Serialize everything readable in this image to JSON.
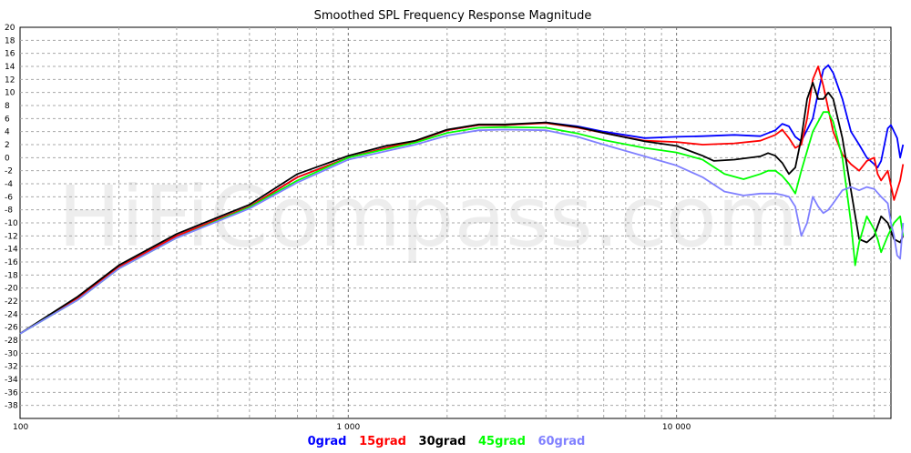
{
  "chart_data": {
    "type": "line",
    "title": "Smoothed SPL Frequency Response Magnitude",
    "watermark": "HiFiCompass.com",
    "x_scale": "log",
    "xlim": [
      100,
      45000
    ],
    "ylim": [
      -40,
      20
    ],
    "grid": true,
    "legend_position": "bottom-center",
    "y_ticks": [
      "20",
      "18",
      "16",
      "14",
      "12",
      "10",
      "8",
      "6",
      "4",
      "2",
      "0",
      "-2",
      "-4",
      "-6",
      "-8",
      "-10",
      "-12",
      "-14",
      "-16",
      "-18",
      "-20",
      "-22",
      "-24",
      "-26",
      "-28",
      "-30",
      "-32",
      "-34",
      "-36",
      "-38"
    ],
    "x_tick_labels": [
      {
        "value": 100,
        "label": "100"
      },
      {
        "value": 1000,
        "label": "1 000"
      },
      {
        "value": 10000,
        "label": "10 000"
      }
    ],
    "series": [
      {
        "name": "0grad",
        "color": "#0000ff",
        "points": [
          [
            100,
            -27
          ],
          [
            150,
            -21.5
          ],
          [
            200,
            -16.8
          ],
          [
            300,
            -12
          ],
          [
            500,
            -7.5
          ],
          [
            700,
            -3
          ],
          [
            1000,
            0
          ],
          [
            1300,
            1.5
          ],
          [
            1600,
            2.5
          ],
          [
            2000,
            4.2
          ],
          [
            2500,
            5
          ],
          [
            3000,
            5
          ],
          [
            4000,
            5.4
          ],
          [
            5000,
            4.8
          ],
          [
            6000,
            4
          ],
          [
            8000,
            3
          ],
          [
            10000,
            3.2
          ],
          [
            12000,
            3.3
          ],
          [
            15000,
            3.5
          ],
          [
            18000,
            3.3
          ],
          [
            20000,
            4.2
          ],
          [
            21000,
            5.2
          ],
          [
            22000,
            4.8
          ],
          [
            23000,
            3.2
          ],
          [
            24000,
            2.5
          ],
          [
            26000,
            6
          ],
          [
            27000,
            10
          ],
          [
            28000,
            13.5
          ],
          [
            29000,
            14.2
          ],
          [
            30000,
            13
          ],
          [
            32000,
            9
          ],
          [
            34000,
            4
          ],
          [
            36000,
            2
          ],
          [
            38000,
            0
          ],
          [
            40000,
            -1
          ],
          [
            41000,
            -1.5
          ],
          [
            42000,
            -0.5
          ],
          [
            44000,
            4.5
          ],
          [
            45000,
            5
          ],
          [
            47000,
            3
          ],
          [
            48000,
            0
          ],
          [
            49000,
            2
          ]
        ]
      },
      {
        "name": "15grad",
        "color": "#ff0000",
        "points": [
          [
            100,
            -27
          ],
          [
            150,
            -21.5
          ],
          [
            200,
            -16.8
          ],
          [
            300,
            -12
          ],
          [
            500,
            -7.5
          ],
          [
            700,
            -3
          ],
          [
            1000,
            0
          ],
          [
            1300,
            1.5
          ],
          [
            1600,
            2.5
          ],
          [
            2000,
            4.2
          ],
          [
            2500,
            5
          ],
          [
            3000,
            5
          ],
          [
            4000,
            5.3
          ],
          [
            5000,
            4.6
          ],
          [
            6000,
            3.8
          ],
          [
            8000,
            2.6
          ],
          [
            10000,
            2.4
          ],
          [
            12000,
            2
          ],
          [
            15000,
            2.2
          ],
          [
            18000,
            2.6
          ],
          [
            20000,
            3.5
          ],
          [
            21000,
            4.3
          ],
          [
            22000,
            3
          ],
          [
            23000,
            1.5
          ],
          [
            24000,
            2
          ],
          [
            25000,
            6
          ],
          [
            26000,
            12
          ],
          [
            27000,
            14
          ],
          [
            28000,
            11
          ],
          [
            30000,
            4
          ],
          [
            32000,
            0.5
          ],
          [
            34000,
            -1
          ],
          [
            36000,
            -2
          ],
          [
            38000,
            -0.5
          ],
          [
            40000,
            0
          ],
          [
            41000,
            -2.5
          ],
          [
            42000,
            -3.5
          ],
          [
            44000,
            -2
          ],
          [
            46000,
            -6.5
          ],
          [
            48000,
            -3.5
          ],
          [
            49000,
            -1
          ]
        ]
      },
      {
        "name": "30grad",
        "color": "#000000",
        "points": [
          [
            100,
            -27
          ],
          [
            150,
            -21.3
          ],
          [
            200,
            -16.5
          ],
          [
            300,
            -11.7
          ],
          [
            500,
            -7.2
          ],
          [
            700,
            -2.5
          ],
          [
            1000,
            0.3
          ],
          [
            1300,
            1.8
          ],
          [
            1600,
            2.6
          ],
          [
            2000,
            4.3
          ],
          [
            2500,
            5.1
          ],
          [
            3000,
            5.1
          ],
          [
            4000,
            5.4
          ],
          [
            5000,
            4.7
          ],
          [
            6000,
            3.8
          ],
          [
            8000,
            2.5
          ],
          [
            10000,
            1.8
          ],
          [
            12000,
            0.3
          ],
          [
            13000,
            -0.5
          ],
          [
            15000,
            -0.3
          ],
          [
            18000,
            0.2
          ],
          [
            19000,
            0.7
          ],
          [
            20000,
            0.3
          ],
          [
            21000,
            -0.8
          ],
          [
            22000,
            -2.5
          ],
          [
            23000,
            -1.5
          ],
          [
            24000,
            3
          ],
          [
            25000,
            9
          ],
          [
            26000,
            11.5
          ],
          [
            27000,
            9
          ],
          [
            28000,
            9
          ],
          [
            29000,
            10
          ],
          [
            30000,
            9
          ],
          [
            32000,
            3
          ],
          [
            34000,
            -5
          ],
          [
            36000,
            -12.5
          ],
          [
            38000,
            -13
          ],
          [
            40000,
            -12
          ],
          [
            41000,
            -10.5
          ],
          [
            42000,
            -9
          ],
          [
            44000,
            -10
          ],
          [
            46000,
            -12.5
          ],
          [
            48000,
            -13
          ],
          [
            49000,
            -12
          ]
        ]
      },
      {
        "name": "45grad",
        "color": "#00ff00",
        "points": [
          [
            100,
            -27
          ],
          [
            150,
            -21.8
          ],
          [
            200,
            -17
          ],
          [
            300,
            -12.3
          ],
          [
            500,
            -7.6
          ],
          [
            700,
            -3.5
          ],
          [
            1000,
            0
          ],
          [
            1300,
            1.3
          ],
          [
            1600,
            2.3
          ],
          [
            2000,
            3.8
          ],
          [
            2500,
            4.6
          ],
          [
            3000,
            4.7
          ],
          [
            4000,
            4.6
          ],
          [
            5000,
            3.7
          ],
          [
            6000,
            2.7
          ],
          [
            8000,
            1.5
          ],
          [
            10000,
            0.8
          ],
          [
            12000,
            -0.3
          ],
          [
            14000,
            -2.5
          ],
          [
            16000,
            -3.3
          ],
          [
            18000,
            -2.5
          ],
          [
            19000,
            -2
          ],
          [
            20000,
            -2
          ],
          [
            21000,
            -2.8
          ],
          [
            22000,
            -4
          ],
          [
            23000,
            -5.5
          ],
          [
            24000,
            -2
          ],
          [
            26000,
            4
          ],
          [
            28000,
            7
          ],
          [
            29000,
            7
          ],
          [
            30000,
            5.5
          ],
          [
            32000,
            0
          ],
          [
            34000,
            -10
          ],
          [
            35000,
            -16.5
          ],
          [
            36000,
            -13
          ],
          [
            38000,
            -9
          ],
          [
            40000,
            -11
          ],
          [
            41000,
            -12.5
          ],
          [
            42000,
            -14.5
          ],
          [
            44000,
            -12
          ],
          [
            46000,
            -10
          ],
          [
            48000,
            -9
          ],
          [
            49000,
            -12
          ]
        ]
      },
      {
        "name": "60grad",
        "color": "#8080ff",
        "points": [
          [
            100,
            -27
          ],
          [
            150,
            -21.8
          ],
          [
            200,
            -17
          ],
          [
            300,
            -12.3
          ],
          [
            500,
            -7.8
          ],
          [
            700,
            -3.8
          ],
          [
            1000,
            -0.3
          ],
          [
            1300,
            1
          ],
          [
            1600,
            2
          ],
          [
            2000,
            3.4
          ],
          [
            2500,
            4.2
          ],
          [
            3000,
            4.3
          ],
          [
            4000,
            4.2
          ],
          [
            5000,
            3.2
          ],
          [
            6000,
            2
          ],
          [
            8000,
            0.2
          ],
          [
            10000,
            -1.2
          ],
          [
            12000,
            -3
          ],
          [
            14000,
            -5.2
          ],
          [
            16000,
            -5.8
          ],
          [
            18000,
            -5.5
          ],
          [
            20000,
            -5.5
          ],
          [
            21000,
            -5.7
          ],
          [
            22000,
            -6
          ],
          [
            23000,
            -7.5
          ],
          [
            24000,
            -12
          ],
          [
            25000,
            -10
          ],
          [
            26000,
            -6
          ],
          [
            27000,
            -7.5
          ],
          [
            28000,
            -8.5
          ],
          [
            29000,
            -8
          ],
          [
            30000,
            -7
          ],
          [
            32000,
            -5
          ],
          [
            34000,
            -4.5
          ],
          [
            36000,
            -5
          ],
          [
            38000,
            -4.5
          ],
          [
            40000,
            -4.8
          ],
          [
            42000,
            -6
          ],
          [
            44000,
            -7
          ],
          [
            45000,
            -10
          ],
          [
            46000,
            -12
          ],
          [
            47000,
            -15
          ],
          [
            48000,
            -15.5
          ],
          [
            49000,
            -10
          ]
        ]
      }
    ]
  }
}
